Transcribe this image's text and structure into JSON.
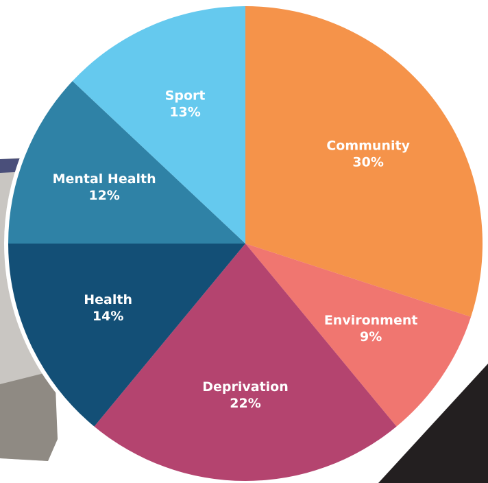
{
  "chart_data": {
    "type": "pie",
    "categories": [
      "Community",
      "Environment",
      "Deprivation",
      "Health",
      "Mental Health",
      "Sport"
    ],
    "values": [
      30,
      9,
      22,
      14,
      12,
      13
    ],
    "value_labels": [
      "30%",
      "9%",
      "22%",
      "14%",
      "12%",
      "13%"
    ],
    "colors": [
      "#f5934a",
      "#f07670",
      "#b4446f",
      "#134f76",
      "#2f82a6",
      "#65c9ee"
    ]
  }
}
